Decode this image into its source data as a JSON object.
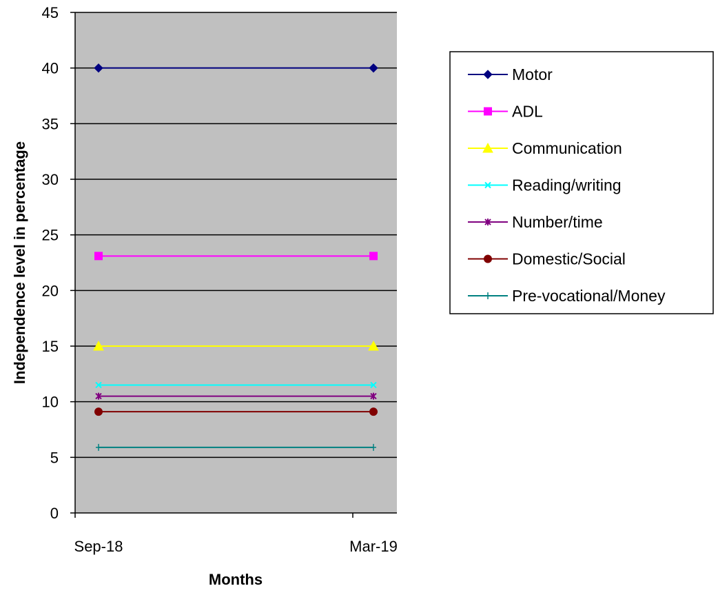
{
  "chart_data": {
    "type": "line",
    "title": "",
    "xlabel": "Months",
    "ylabel": "Independence level in percentage",
    "categories": [
      "Sep-18",
      "Mar-19"
    ],
    "ylim": [
      0,
      45
    ],
    "yticks": [
      0,
      5,
      10,
      15,
      20,
      25,
      30,
      35,
      40,
      45
    ],
    "grid": true,
    "plot_background": "#C0C0C0",
    "legend_position": "right",
    "series": [
      {
        "name": "Motor",
        "values": [
          40,
          40
        ],
        "color": "#000080",
        "marker": "diamond"
      },
      {
        "name": "ADL",
        "values": [
          23.1,
          23.1
        ],
        "color": "#FF00FF",
        "marker": "square"
      },
      {
        "name": "Communication",
        "values": [
          15,
          15
        ],
        "color": "#FFFF00",
        "marker": "triangle"
      },
      {
        "name": "Reading/writing",
        "values": [
          11.5,
          11.5
        ],
        "color": "#00FFFF",
        "marker": "x"
      },
      {
        "name": "Number/time",
        "values": [
          10.5,
          10.5
        ],
        "color": "#800080",
        "marker": "star"
      },
      {
        "name": "Domestic/Social",
        "values": [
          9.1,
          9.1
        ],
        "color": "#800000",
        "marker": "circle"
      },
      {
        "name": "Pre-vocational/Money",
        "values": [
          5.9,
          5.9
        ],
        "color": "#008080",
        "marker": "plus"
      }
    ]
  }
}
